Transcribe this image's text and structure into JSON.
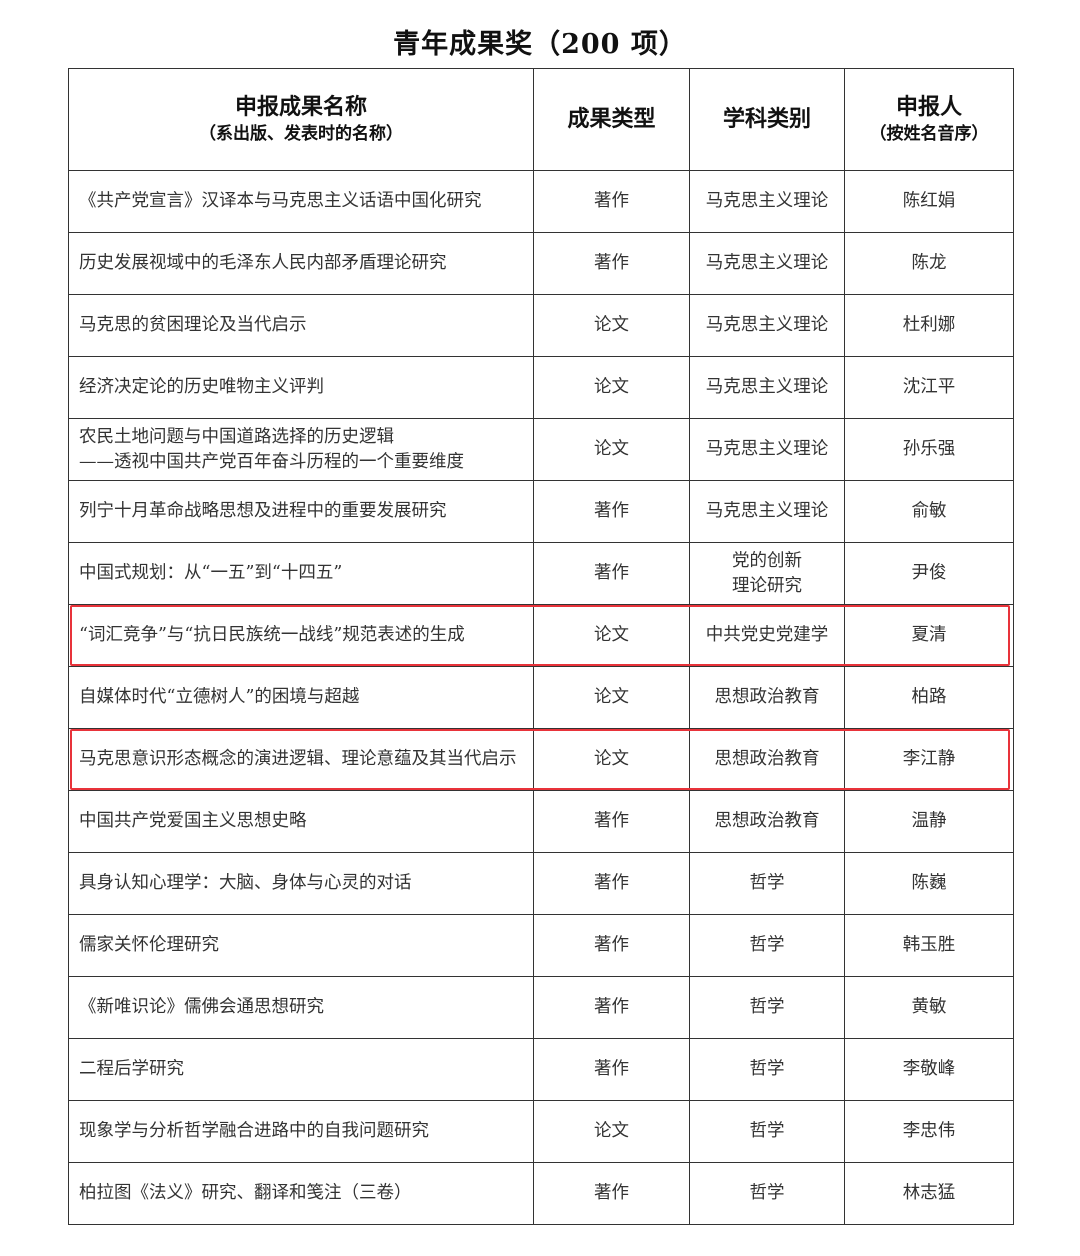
{
  "title": "青年成果奖（200 项）",
  "highlight_color": "#e8333a",
  "header": {
    "name": "申报成果名称",
    "name_sub": "（系出版、发表时的名称）",
    "type": "成果类型",
    "discipline": "学科类别",
    "applicant": "申报人",
    "applicant_sub": "（按姓名音序）"
  },
  "rows": [
    {
      "name": "《共产党宣言》汉译本与马克思主义话语中国化研究",
      "type": "著作",
      "discipline": "马克思主义理论",
      "applicant": "陈红娟",
      "highlighted": false
    },
    {
      "name": "历史发展视域中的毛泽东人民内部矛盾理论研究",
      "type": "著作",
      "discipline": "马克思主义理论",
      "applicant": "陈龙",
      "highlighted": false
    },
    {
      "name": "马克思的贫困理论及当代启示",
      "type": "论文",
      "discipline": "马克思主义理论",
      "applicant": "杜利娜",
      "highlighted": false
    },
    {
      "name": "经济决定论的历史唯物主义评判",
      "type": "论文",
      "discipline": "马克思主义理论",
      "applicant": "沈江平",
      "highlighted": false
    },
    {
      "name": "农民土地问题与中国道路选择的历史逻辑\n——透视中国共产党百年奋斗历程的一个重要维度",
      "type": "论文",
      "discipline": "马克思主义理论",
      "applicant": "孙乐强",
      "highlighted": false
    },
    {
      "name": "列宁十月革命战略思想及进程中的重要发展研究",
      "type": "著作",
      "discipline": "马克思主义理论",
      "applicant": "俞敏",
      "highlighted": false
    },
    {
      "name": "中国式规划：从“一五”到“十四五”",
      "type": "著作",
      "discipline": "党的创新\n理论研究",
      "applicant": "尹俊",
      "highlighted": false
    },
    {
      "name": "“词汇竞争”与“抗日民族统一战线”规范表述的生成",
      "type": "论文",
      "discipline": "中共党史党建学",
      "applicant": "夏清",
      "highlighted": true
    },
    {
      "name": "自媒体时代“立德树人”的困境与超越",
      "type": "论文",
      "discipline": "思想政治教育",
      "applicant": "柏路",
      "highlighted": false
    },
    {
      "name": "马克思意识形态概念的演进逻辑、理论意蕴及其当代启示",
      "type": "论文",
      "discipline": "思想政治教育",
      "applicant": "李江静",
      "highlighted": true
    },
    {
      "name": "中国共产党爱国主义思想史略",
      "type": "著作",
      "discipline": "思想政治教育",
      "applicant": "温静",
      "highlighted": false
    },
    {
      "name": "具身认知心理学：大脑、身体与心灵的对话",
      "type": "著作",
      "discipline": "哲学",
      "applicant": "陈巍",
      "highlighted": false
    },
    {
      "name": "儒家关怀伦理研究",
      "type": "著作",
      "discipline": "哲学",
      "applicant": "韩玉胜",
      "highlighted": false
    },
    {
      "name": "《新唯识论》儒佛会通思想研究",
      "type": "著作",
      "discipline": "哲学",
      "applicant": "黄敏",
      "highlighted": false
    },
    {
      "name": "二程后学研究",
      "type": "著作",
      "discipline": "哲学",
      "applicant": "李敬峰",
      "highlighted": false
    },
    {
      "name": "现象学与分析哲学融合进路中的自我问题研究",
      "type": "论文",
      "discipline": "哲学",
      "applicant": "李忠伟",
      "highlighted": false
    },
    {
      "name": "柏拉图《法义》研究、翻译和笺注（三卷）",
      "type": "著作",
      "discipline": "哲学",
      "applicant": "林志猛",
      "highlighted": false
    }
  ]
}
